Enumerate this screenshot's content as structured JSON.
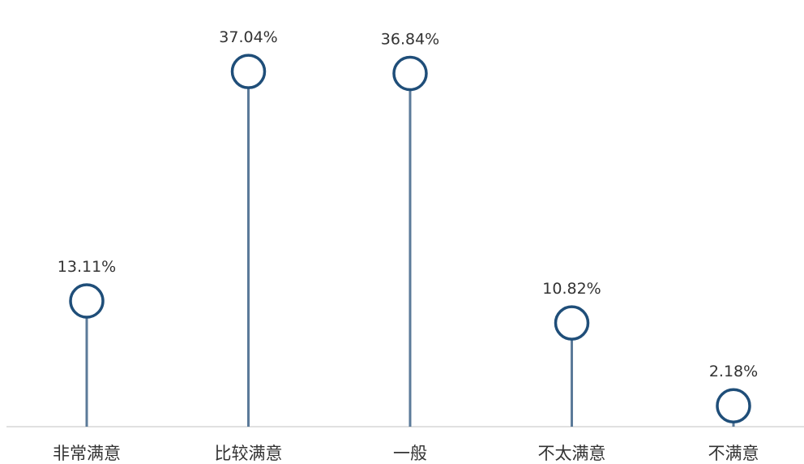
{
  "chart_data": {
    "type": "lollipop",
    "title": "",
    "xlabel": "",
    "ylabel": "",
    "categories": [
      "非常满意",
      "比较满意",
      "一般",
      "不太满意",
      "不满意"
    ],
    "values": [
      13.11,
      37.04,
      36.84,
      10.82,
      2.18
    ],
    "data_labels": [
      "13.11%",
      "37.04%",
      "36.84%",
      "10.82%",
      "2.18%"
    ],
    "unit": "%",
    "ylim": [
      0,
      40
    ],
    "grid": false,
    "legend": "none",
    "colors": {
      "stem": "#5b7a99",
      "marker_stroke": "#1f4e79",
      "marker_fill": "#ffffff",
      "axis": "#d6d6d6",
      "text": "#333333"
    }
  }
}
